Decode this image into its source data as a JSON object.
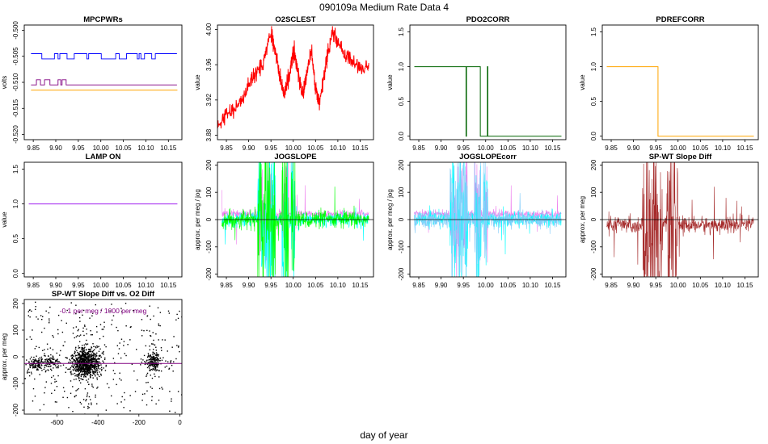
{
  "page": {
    "title": "090109a   Medium Rate Data 4",
    "xlabel": "day of year"
  },
  "chart_data": [
    {
      "type": "line",
      "title": "MPCPWRs",
      "ylabel": "volts",
      "xlim": [
        9.83,
        10.18
      ],
      "ylim": [
        -0.521,
        -0.499
      ],
      "xticks": [
        "9.85",
        "9.90",
        "9.95",
        "10.00",
        "10.05",
        "10.10",
        "10.15"
      ],
      "yticks": [
        "-0.520",
        "-0.515",
        "-0.510",
        "-0.505",
        "-0.500"
      ],
      "series": [
        {
          "color": "#0000ff",
          "values": [
            -0.5045,
            -0.5055
          ],
          "style": "stepping"
        },
        {
          "color": "#800080",
          "values": [
            -0.5095,
            -0.5105
          ],
          "style": "stepping-early-then-flat"
        },
        {
          "color": "#ffa500",
          "values": [
            -0.5115
          ],
          "style": "flat"
        }
      ]
    },
    {
      "type": "line",
      "title": "O2SCLEST",
      "ylabel": "value",
      "xlim": [
        9.83,
        10.18
      ],
      "ylim": [
        3.875,
        4.005
      ],
      "xticks": [
        "9.85",
        "9.90",
        "9.95",
        "10.00",
        "10.05",
        "10.10",
        "10.15"
      ],
      "yticks": [
        "3.88",
        "3.92",
        "3.96",
        "4.00"
      ],
      "series": [
        {
          "color": "#ff0000",
          "points": [
            [
              9.83,
              3.89
            ],
            [
              9.85,
              3.905
            ],
            [
              9.87,
              3.91
            ],
            [
              9.89,
              3.925
            ],
            [
              9.91,
              3.945
            ],
            [
              9.93,
              3.96
            ],
            [
              9.95,
              3.995
            ],
            [
              9.96,
              3.975
            ],
            [
              9.97,
              3.945
            ],
            [
              9.98,
              3.925
            ],
            [
              9.99,
              3.945
            ],
            [
              10.0,
              3.975
            ],
            [
              10.01,
              3.955
            ],
            [
              10.02,
              3.925
            ],
            [
              10.03,
              3.95
            ],
            [
              10.04,
              3.975
            ],
            [
              10.05,
              3.935
            ],
            [
              10.06,
              3.915
            ],
            [
              10.075,
              3.97
            ],
            [
              10.09,
              3.995
            ],
            [
              10.11,
              3.975
            ],
            [
              10.13,
              3.965
            ],
            [
              10.15,
              3.955
            ],
            [
              10.17,
              3.96
            ]
          ]
        }
      ]
    },
    {
      "type": "line",
      "title": "PDO2CORR",
      "ylabel": "value",
      "xlim": [
        9.83,
        10.18
      ],
      "ylim": [
        -0.05,
        1.6
      ],
      "xticks": [
        "9.85",
        "9.90",
        "9.95",
        "10.00",
        "10.05",
        "10.10",
        "10.15"
      ],
      "yticks": [
        "0.0",
        "0.5",
        "1.0",
        "1.5"
      ],
      "series": [
        {
          "color": "#006400",
          "points": [
            [
              9.84,
              1
            ],
            [
              9.956,
              1
            ],
            [
              9.956,
              0
            ],
            [
              9.957,
              0
            ],
            [
              9.957,
              1
            ],
            [
              9.988,
              1
            ],
            [
              9.988,
              0
            ],
            [
              10.004,
              0
            ],
            [
              10.004,
              1
            ],
            [
              10.005,
              1
            ],
            [
              10.005,
              0
            ],
            [
              10.17,
              0
            ]
          ]
        }
      ]
    },
    {
      "type": "line",
      "title": "PDREFCORR",
      "ylabel": "value",
      "xlim": [
        9.83,
        10.18
      ],
      "ylim": [
        -0.05,
        1.6
      ],
      "xticks": [
        "9.85",
        "9.90",
        "9.95",
        "10.00",
        "10.05",
        "10.10",
        "10.15"
      ],
      "yticks": [
        "0.0",
        "0.5",
        "1.0",
        "1.5"
      ],
      "series": [
        {
          "color": "#ffa500",
          "points": [
            [
              9.84,
              1
            ],
            [
              9.955,
              1
            ],
            [
              9.955,
              0
            ],
            [
              10.17,
              0
            ]
          ]
        }
      ]
    },
    {
      "type": "line",
      "title": "LAMP ON",
      "ylabel": "value",
      "xlim": [
        9.83,
        10.18
      ],
      "ylim": [
        -0.05,
        1.6
      ],
      "xticks": [
        "9.85",
        "9.90",
        "9.95",
        "10.00",
        "10.05",
        "10.10",
        "10.15"
      ],
      "yticks": [
        "0.0",
        "0.5",
        "1.0",
        "1.5"
      ],
      "series": [
        {
          "color": "#a020f0",
          "points": [
            [
              9.84,
              1
            ],
            [
              10.17,
              1
            ]
          ]
        }
      ]
    },
    {
      "type": "line",
      "title": "JOGSLOPE",
      "ylabel": "approx. per meg / jog",
      "xlim": [
        9.83,
        10.18
      ],
      "ylim": [
        -210,
        210
      ],
      "xticks": [
        "9.85",
        "9.90",
        "9.95",
        "10.00",
        "10.05",
        "10.10",
        "10.15"
      ],
      "yticks": [
        "-200",
        "-100",
        "0",
        "100",
        "200"
      ],
      "series": [
        {
          "color": "#ee82ee",
          "values": [
            20
          ]
        },
        {
          "color": "#00ffff",
          "values": [
            0
          ]
        },
        {
          "color": "#00ff00",
          "values": [
            0
          ]
        }
      ]
    },
    {
      "type": "line",
      "title": "JOGSLOPEcorr",
      "ylabel": "approx. per meg / jog",
      "xlim": [
        9.83,
        10.18
      ],
      "ylim": [
        -210,
        210
      ],
      "xticks": [
        "9.85",
        "9.90",
        "9.95",
        "10.00",
        "10.05",
        "10.10",
        "10.15"
      ],
      "yticks": [
        "-200",
        "-100",
        "0",
        "100",
        "200"
      ],
      "series": [
        {
          "color": "#ee82ee",
          "values": [
            20
          ]
        },
        {
          "color": "#00ffff",
          "values": [
            0
          ]
        },
        {
          "color": "#87cefa",
          "values": [
            0
          ]
        }
      ]
    },
    {
      "type": "line",
      "title": "SP-WT Slope Diff",
      "ylabel": "approx. per meg",
      "xlim": [
        9.83,
        10.18
      ],
      "ylim": [
        -210,
        210
      ],
      "xticks": [
        "9.85",
        "9.90",
        "9.95",
        "10.00",
        "10.05",
        "10.10",
        "10.15"
      ],
      "yticks": [
        "-200",
        "-100",
        "0",
        "100",
        "200"
      ],
      "series": [
        {
          "color": "#a52a2a",
          "values": [
            -20
          ]
        }
      ]
    },
    {
      "type": "scatter",
      "title": "SP-WT Slope Diff vs. O2 Diff",
      "ylabel": "approx. per meg",
      "annotation": "-0.1 per meg / 1000 per meg",
      "xlim": [
        -760,
        10
      ],
      "ylim": [
        -215,
        215
      ],
      "xticks": [
        "-600",
        "-400",
        "-200",
        "0"
      ],
      "yticks": [
        "-200",
        "-100",
        "0",
        "100",
        "200"
      ],
      "clusters": [
        [
          -700,
          -25
        ],
        [
          -630,
          -25
        ],
        [
          -460,
          -25
        ],
        [
          -130,
          -20
        ]
      ]
    }
  ],
  "colors": {
    "axis": "#000000",
    "background": "#ffffff"
  }
}
